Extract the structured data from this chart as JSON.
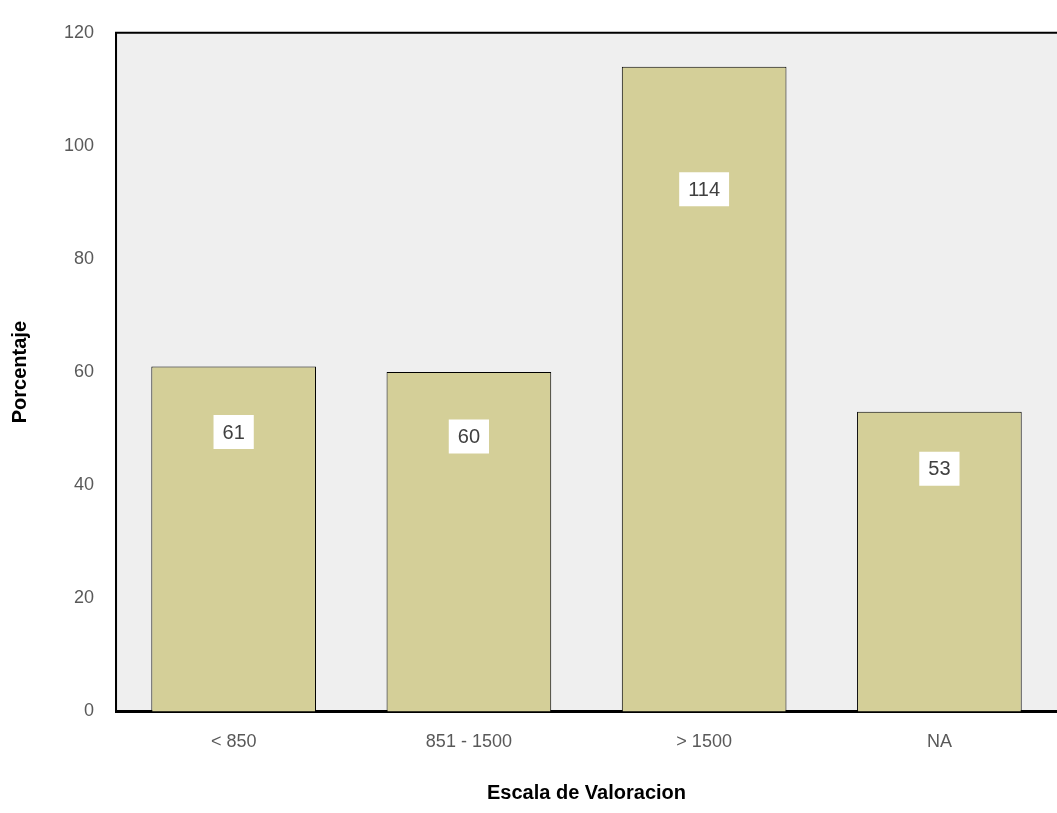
{
  "chart_data": {
    "type": "bar",
    "xlabel": "Escala de Valoracion",
    "ylabel": "Porcentaje",
    "categories": [
      "< 850",
      "851 - 1500",
      "> 1500",
      "NA"
    ],
    "values": [
      61,
      60,
      114,
      53
    ],
    "color": "#d4cf98",
    "ylim": [
      0,
      120
    ],
    "yticks": [
      0,
      20,
      40,
      60,
      80,
      100,
      120
    ],
    "grid": false,
    "legend": false,
    "data_labels": true
  }
}
